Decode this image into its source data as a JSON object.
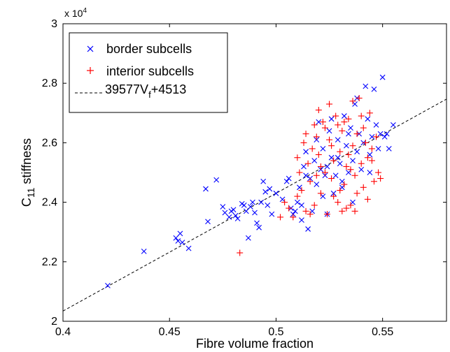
{
  "chart_data": {
    "type": "scatter",
    "title": "",
    "xlabel": "Fibre volume fraction",
    "ylabel": "C",
    "ylabel_sub": "11",
    "ylabel_rest": " stiffness",
    "xlim": [
      0.4,
      0.58
    ],
    "ylim": [
      20000,
      30000
    ],
    "x_ticks": [
      0.4,
      0.45,
      0.5,
      0.55
    ],
    "x_tick_labels": [
      "0.4",
      "0.45",
      "0.5",
      "0.55"
    ],
    "y_ticks": [
      20000,
      22000,
      24000,
      26000,
      28000,
      30000
    ],
    "y_tick_labels": [
      "2",
      "2.2",
      "2.4",
      "2.6",
      "2.8",
      "3"
    ],
    "y_multiplier": {
      "base": "x 10",
      "exp": "4"
    },
    "grid": false,
    "legend_position": "top-left",
    "series": [
      {
        "name": "border subcells",
        "marker": "x",
        "color": "#0000ff",
        "points": [
          [
            0.421,
            21200
          ],
          [
            0.438,
            22350
          ],
          [
            0.453,
            22800
          ],
          [
            0.454,
            22700
          ],
          [
            0.455,
            22950
          ],
          [
            0.456,
            22650
          ],
          [
            0.459,
            22450
          ],
          [
            0.467,
            24450
          ],
          [
            0.468,
            23350
          ],
          [
            0.472,
            24750
          ],
          [
            0.475,
            23850
          ],
          [
            0.476,
            23650
          ],
          [
            0.478,
            23500
          ],
          [
            0.479,
            23700
          ],
          [
            0.48,
            23750
          ],
          [
            0.481,
            23550
          ],
          [
            0.482,
            23450
          ],
          [
            0.484,
            23950
          ],
          [
            0.485,
            23900
          ],
          [
            0.486,
            23700
          ],
          [
            0.487,
            22800
          ],
          [
            0.488,
            23850
          ],
          [
            0.489,
            24000
          ],
          [
            0.49,
            23650
          ],
          [
            0.491,
            23300
          ],
          [
            0.492,
            23150
          ],
          [
            0.493,
            24000
          ],
          [
            0.494,
            24700
          ],
          [
            0.495,
            24350
          ],
          [
            0.496,
            23900
          ],
          [
            0.497,
            24450
          ],
          [
            0.498,
            23600
          ],
          [
            0.5,
            24300
          ],
          [
            0.503,
            24100
          ],
          [
            0.505,
            24700
          ],
          [
            0.506,
            24800
          ],
          [
            0.507,
            23800
          ],
          [
            0.508,
            23600
          ],
          [
            0.509,
            23700
          ],
          [
            0.51,
            24000
          ],
          [
            0.511,
            24500
          ],
          [
            0.512,
            23400
          ],
          [
            0.512,
            23900
          ],
          [
            0.513,
            25200
          ],
          [
            0.514,
            24900
          ],
          [
            0.515,
            23100
          ],
          [
            0.516,
            24800
          ],
          [
            0.517,
            23700
          ],
          [
            0.518,
            25400
          ],
          [
            0.519,
            24600
          ],
          [
            0.52,
            26700
          ],
          [
            0.521,
            25100
          ],
          [
            0.522,
            25800
          ],
          [
            0.523,
            24900
          ],
          [
            0.524,
            23600
          ],
          [
            0.525,
            26400
          ],
          [
            0.526,
            25500
          ],
          [
            0.527,
            24300
          ],
          [
            0.528,
            24900
          ],
          [
            0.529,
            26100
          ],
          [
            0.53,
            25300
          ],
          [
            0.531,
            24700
          ],
          [
            0.532,
            26900
          ],
          [
            0.533,
            25900
          ],
          [
            0.534,
            25000
          ],
          [
            0.535,
            26500
          ],
          [
            0.536,
            25400
          ],
          [
            0.537,
            27300
          ],
          [
            0.538,
            25700
          ],
          [
            0.539,
            26300
          ],
          [
            0.54,
            25100
          ],
          [
            0.541,
            26000
          ],
          [
            0.542,
            27900
          ],
          [
            0.543,
            26800
          ],
          [
            0.544,
            25600
          ],
          [
            0.545,
            26200
          ],
          [
            0.546,
            27800
          ],
          [
            0.547,
            26600
          ],
          [
            0.548,
            25800
          ],
          [
            0.549,
            26300
          ],
          [
            0.55,
            28200
          ],
          [
            0.551,
            26200
          ],
          [
            0.552,
            26300
          ],
          [
            0.553,
            25800
          ],
          [
            0.555,
            26600
          ],
          [
            0.514,
            25700
          ],
          [
            0.519,
            26100
          ],
          [
            0.524,
            25200
          ],
          [
            0.529,
            25500
          ],
          [
            0.534,
            26300
          ],
          [
            0.538,
            27500
          ],
          [
            0.526,
            26800
          ],
          [
            0.531,
            24500
          ],
          [
            0.522,
            24200
          ],
          [
            0.536,
            24000
          ],
          [
            0.544,
            25000
          ]
        ]
      },
      {
        "name": "interior subcells",
        "marker": "+",
        "color": "#ff0000",
        "points": [
          [
            0.483,
            22300
          ],
          [
            0.502,
            23500
          ],
          [
            0.504,
            24000
          ],
          [
            0.506,
            23800
          ],
          [
            0.508,
            23500
          ],
          [
            0.51,
            24200
          ],
          [
            0.511,
            25000
          ],
          [
            0.512,
            24400
          ],
          [
            0.514,
            23700
          ],
          [
            0.515,
            25300
          ],
          [
            0.516,
            24700
          ],
          [
            0.517,
            25800
          ],
          [
            0.518,
            23900
          ],
          [
            0.519,
            26200
          ],
          [
            0.52,
            25600
          ],
          [
            0.521,
            24300
          ],
          [
            0.522,
            26700
          ],
          [
            0.523,
            25000
          ],
          [
            0.524,
            23600
          ],
          [
            0.525,
            26100
          ],
          [
            0.526,
            24800
          ],
          [
            0.527,
            25400
          ],
          [
            0.528,
            26900
          ],
          [
            0.529,
            24000
          ],
          [
            0.53,
            25700
          ],
          [
            0.531,
            26400
          ],
          [
            0.532,
            24600
          ],
          [
            0.533,
            25200
          ],
          [
            0.534,
            26800
          ],
          [
            0.535,
            23900
          ],
          [
            0.536,
            25900
          ],
          [
            0.537,
            24900
          ],
          [
            0.538,
            26300
          ],
          [
            0.539,
            27500
          ],
          [
            0.54,
            25300
          ],
          [
            0.541,
            24500
          ],
          [
            0.542,
            26000
          ],
          [
            0.543,
            25500
          ],
          [
            0.544,
            27000
          ],
          [
            0.545,
            25800
          ],
          [
            0.546,
            24700
          ],
          [
            0.547,
            26200
          ],
          [
            0.548,
            25000
          ],
          [
            0.549,
            24800
          ],
          [
            0.513,
            26000
          ],
          [
            0.518,
            26600
          ],
          [
            0.523,
            26500
          ],
          [
            0.527,
            24200
          ],
          [
            0.531,
            23700
          ],
          [
            0.536,
            27400
          ],
          [
            0.533,
            23800
          ],
          [
            0.538,
            24300
          ],
          [
            0.54,
            26900
          ],
          [
            0.525,
            27300
          ],
          [
            0.519,
            24900
          ],
          [
            0.529,
            26600
          ],
          [
            0.534,
            25600
          ],
          [
            0.543,
            24100
          ],
          [
            0.516,
            23600
          ],
          [
            0.521,
            25200
          ],
          [
            0.526,
            25900
          ],
          [
            0.532,
            26700
          ],
          [
            0.537,
            23700
          ],
          [
            0.541,
            26500
          ],
          [
            0.545,
            25400
          ],
          [
            0.51,
            25500
          ],
          [
            0.514,
            26300
          ],
          [
            0.52,
            27100
          ],
          [
            0.53,
            24400
          ],
          [
            0.535,
            25100
          ]
        ]
      },
      {
        "name": "39577V",
        "name_sub": "f",
        "name_rest": "+4513",
        "type": "line",
        "dash": "dashed",
        "color": "#000000",
        "slope": 39577,
        "intercept": 4513
      }
    ]
  }
}
